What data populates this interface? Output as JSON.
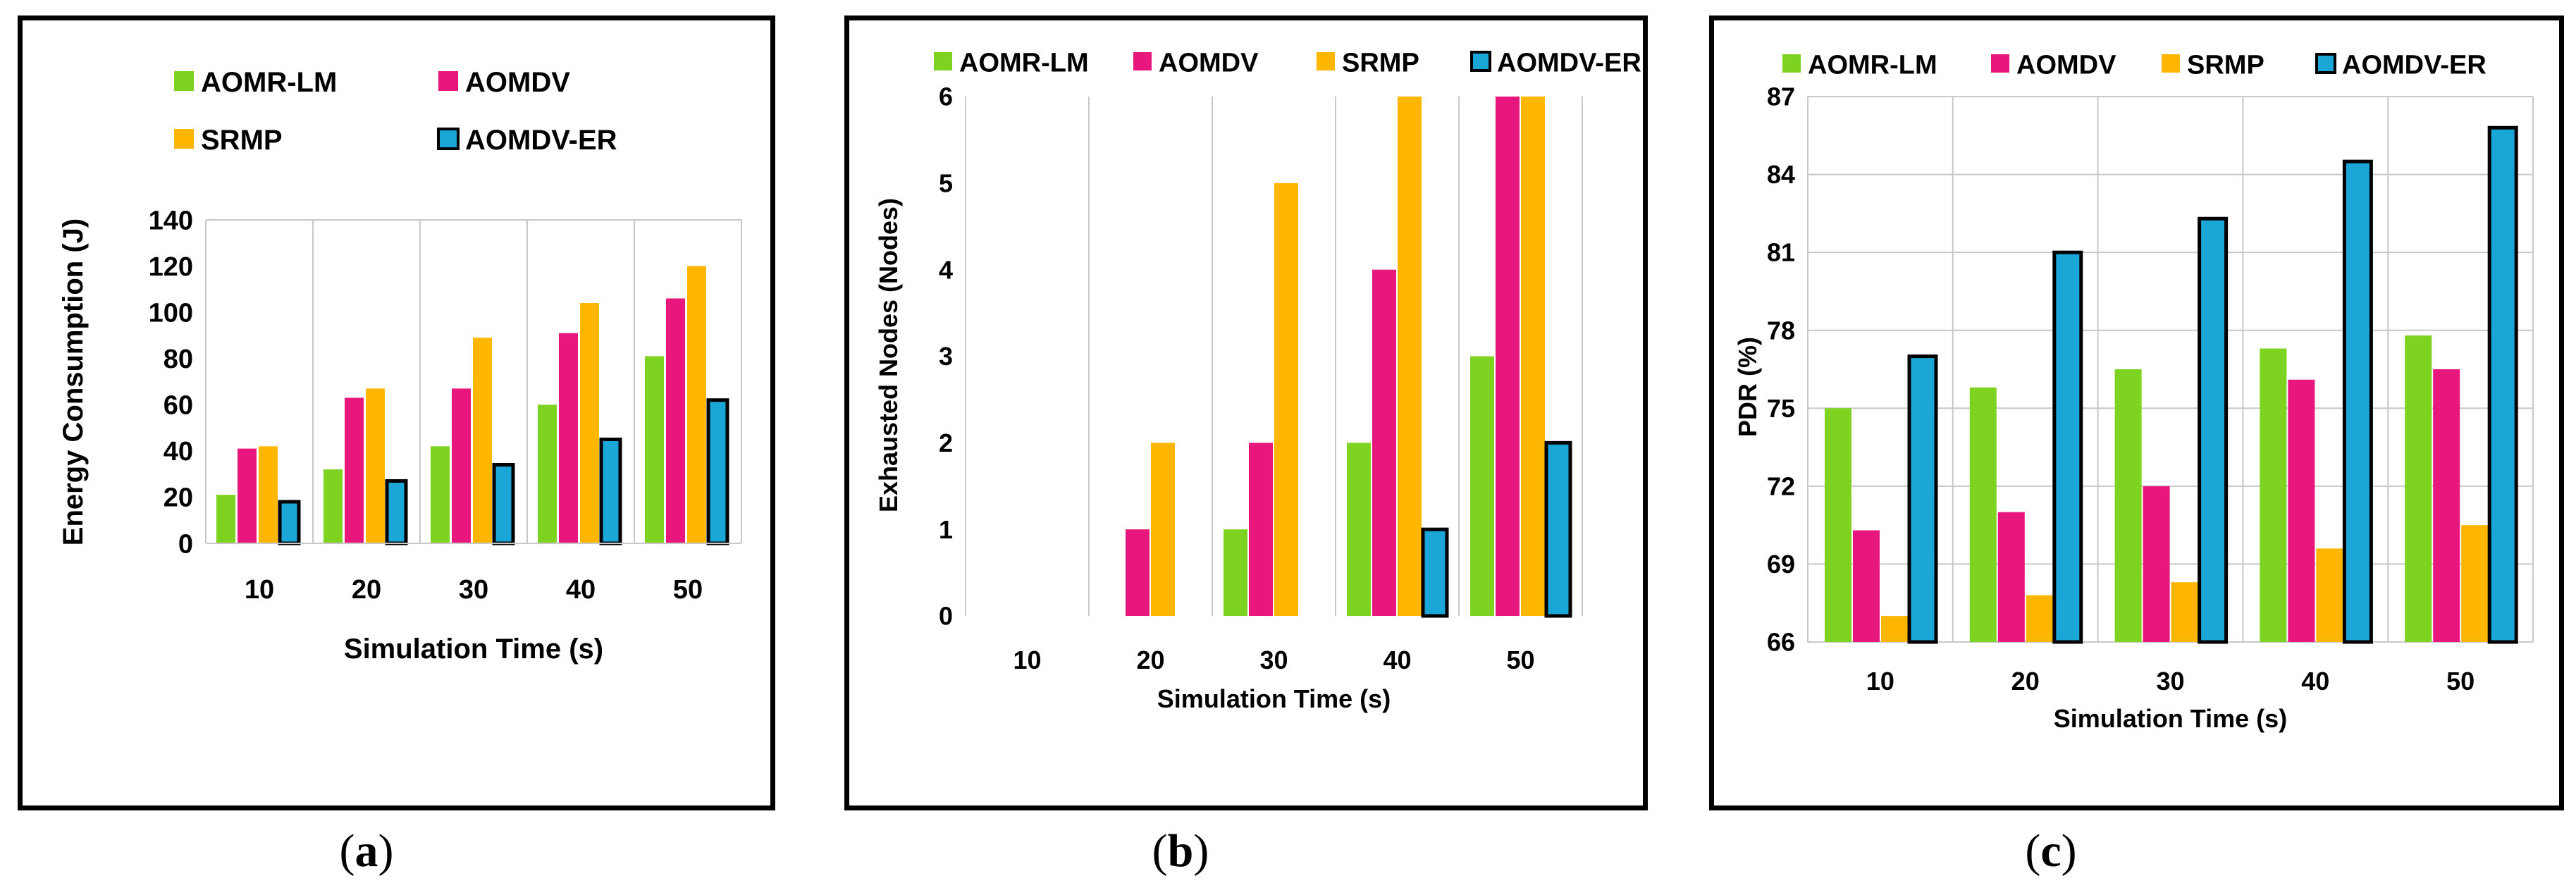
{
  "colors": {
    "AOMR-LM": "#7ed321",
    "AOMDV": "#e8177e",
    "SRMP": "#ffb600",
    "AOMDV-ER": "#1ba6d8"
  },
  "captions": [
    "a",
    "b",
    "c"
  ],
  "chart_data": [
    {
      "type": "bar",
      "panel": "a",
      "title": "",
      "xlabel": "Simulation Time (s)",
      "ylabel": "Energy Consumption  (J)",
      "categories": [
        "10",
        "20",
        "30",
        "40",
        "50"
      ],
      "ylim": [
        0,
        140
      ],
      "yticks": [
        "0",
        "20",
        "40",
        "60",
        "80",
        "100",
        "120",
        "140"
      ],
      "legend_labels": [
        "AOMR-LM",
        "AOMDV",
        "SRMP",
        "AOMDV-ER"
      ],
      "series": [
        {
          "name": "AOMR-LM",
          "values": [
            21,
            32,
            42,
            60,
            81
          ]
        },
        {
          "name": "AOMDV",
          "values": [
            41,
            63,
            67,
            91,
            106
          ]
        },
        {
          "name": "SRMP",
          "values": [
            42,
            67,
            89,
            104,
            120
          ]
        },
        {
          "name": "AOMDV-ER",
          "values": [
            18,
            27,
            34,
            45,
            62
          ]
        }
      ]
    },
    {
      "type": "bar",
      "panel": "b",
      "title": "",
      "xlabel": "Simulation Time (s)",
      "ylabel": "Exhausted Nodes (Nodes)",
      "categories": [
        "10",
        "20",
        "30",
        "40",
        "50"
      ],
      "ylim": [
        0,
        6
      ],
      "yticks": [
        "0",
        "1",
        "2",
        "3",
        "4",
        "5",
        "6"
      ],
      "legend_labels": [
        "AOMR-LM",
        "AOMDV",
        "SRMP",
        "AOMDV-ER"
      ],
      "series": [
        {
          "name": "AOMR-LM",
          "values": [
            0,
            0,
            1,
            2,
            3
          ]
        },
        {
          "name": "AOMDV",
          "values": [
            0,
            1,
            2,
            4,
            6
          ]
        },
        {
          "name": "SRMP",
          "values": [
            0,
            2,
            5,
            6,
            6
          ]
        },
        {
          "name": "AOMDV-ER",
          "values": [
            0,
            0,
            0,
            1,
            2
          ]
        }
      ]
    },
    {
      "type": "bar",
      "panel": "c",
      "title": "",
      "xlabel": "Simulation Time (s)",
      "ylabel": "PDR (%)",
      "categories": [
        "10",
        "20",
        "30",
        "40",
        "50"
      ],
      "ylim": [
        66,
        87
      ],
      "yticks": [
        "66",
        "69",
        "72",
        "75",
        "78",
        "81",
        "84",
        "87"
      ],
      "legend_labels": [
        "AOMR-LM",
        "AOMDV",
        "SRMP",
        "AOMDV-ER"
      ],
      "series": [
        {
          "name": "AOMR-LM",
          "values": [
            75,
            75.8,
            76.5,
            77.3,
            77.8
          ]
        },
        {
          "name": "AOMDV",
          "values": [
            70.3,
            71,
            72,
            76.1,
            76.5
          ]
        },
        {
          "name": "SRMP",
          "values": [
            67,
            67.8,
            68.3,
            69.6,
            70.5
          ]
        },
        {
          "name": "AOMDV-ER",
          "values": [
            77,
            81,
            82.3,
            84.5,
            85.8
          ]
        }
      ]
    }
  ]
}
